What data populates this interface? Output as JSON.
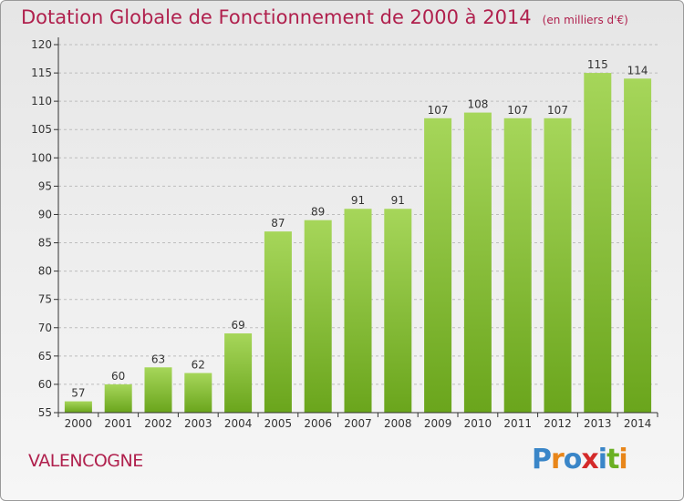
{
  "header": {
    "title": "Dotation Globale de Fonctionnement de 2000 à 2014",
    "unit": "(en milliers d'€)"
  },
  "footer": {
    "commune": "VALENCOGNE",
    "logo": "Proxiti"
  },
  "colors": {
    "title": "#b0204d",
    "bar_top": "#a6d65a",
    "bar_bottom": "#6aa51c",
    "axis": "#333333",
    "grid": "#bdbdbd"
  },
  "chart_data": {
    "type": "bar",
    "title": "Dotation Globale de Fonctionnement de 2000 à 2014",
    "subtitle": "(en milliers d'€)",
    "xlabel": "",
    "ylabel": "",
    "categories": [
      "2000",
      "2001",
      "2002",
      "2003",
      "2004",
      "2005",
      "2006",
      "2007",
      "2008",
      "2009",
      "2010",
      "2011",
      "2012",
      "2013",
      "2014"
    ],
    "values": [
      57,
      60,
      63,
      62,
      69,
      87,
      89,
      91,
      91,
      107,
      108,
      107,
      107,
      115,
      114
    ],
    "ylim": [
      55,
      120
    ],
    "yticks": [
      55,
      60,
      65,
      70,
      75,
      80,
      85,
      90,
      95,
      100,
      105,
      110,
      115,
      120
    ],
    "grid": "horizontal dashed",
    "legend": "none"
  }
}
